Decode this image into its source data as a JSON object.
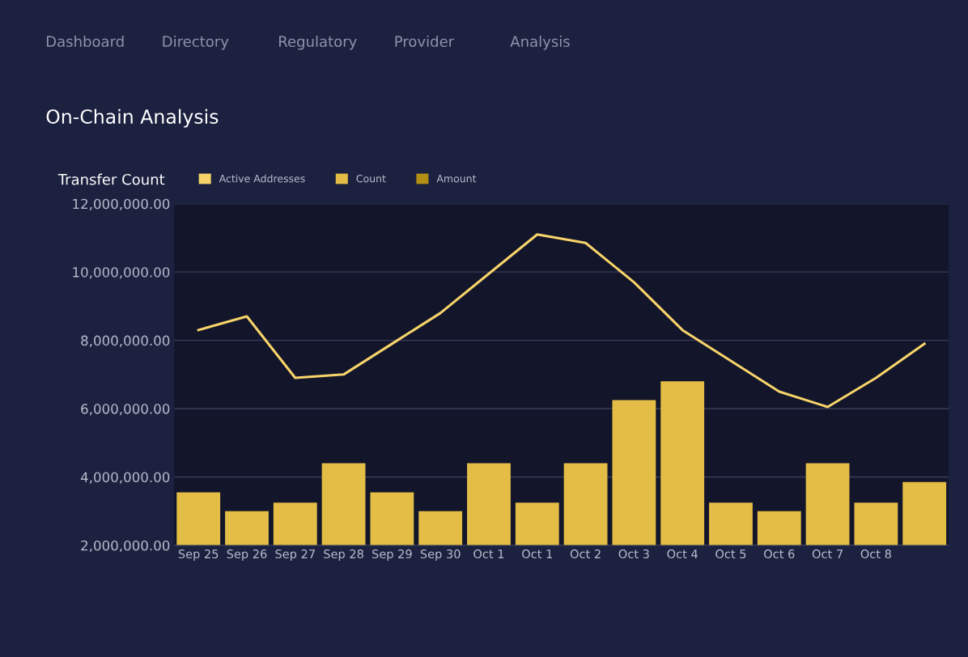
{
  "chart_data": {
    "type": "bar",
    "title": "On-Chain Analysis",
    "subtitle": "Transfer Count",
    "annotations": [
      "Dashboard",
      "Directory",
      "Regulatory",
      "Provider",
      "Analysis"
    ],
    "categories": [
      "Sep 25",
      "Sep 26",
      "Sep 27",
      "Sep 28",
      "Sep 29",
      "Sep 30",
      "Oct 1",
      "Oct 1",
      "Oct 2",
      "Oct 3",
      "Oct 4",
      "Oct 5",
      "Oct 6",
      "Oct 7",
      "Oct 8",
      null
    ],
    "series": [
      {
        "name": "Active Addresses",
        "type": "line",
        "color": "#f7d46a",
        "values": [
          8300000,
          8700000,
          6900000,
          7000000,
          7900000,
          8800000,
          9950000,
          11100000,
          10850000,
          9700000,
          8300000,
          7400000,
          6500000,
          6050000,
          6900000,
          7900000
        ]
      },
      {
        "name": "Count",
        "color": "#e3bd45",
        "values": [
          3550000,
          3000000,
          3250000,
          4400000,
          3550000,
          3000000,
          4400000,
          3250000,
          4400000,
          6250000,
          6800000,
          3250000,
          3000000,
          4400000,
          3250000,
          3850000
        ]
      },
      {
        "name": "Amount",
        "color": "#b38f14",
        "values": [
          null,
          null,
          null,
          null,
          null,
          null,
          null,
          null,
          null,
          null,
          null,
          null,
          null,
          null,
          null,
          null
        ]
      }
    ],
    "ylim": [
      2000000,
      12000000
    ],
    "yticks": [
      {
        "value": 2000000,
        "label": "2,000,000.00"
      },
      {
        "value": 4000000,
        "label": "4,000,000.00"
      },
      {
        "value": 6000000,
        "label": "6,000,000.00"
      },
      {
        "value": 8000000,
        "label": "8,000,000.00"
      },
      {
        "value": 10000000,
        "label": "10,000,000.00"
      },
      {
        "value": 12000000,
        "label": "12,000,000.00"
      }
    ],
    "grid": "y",
    "legend": "top left",
    "marker": "none"
  }
}
